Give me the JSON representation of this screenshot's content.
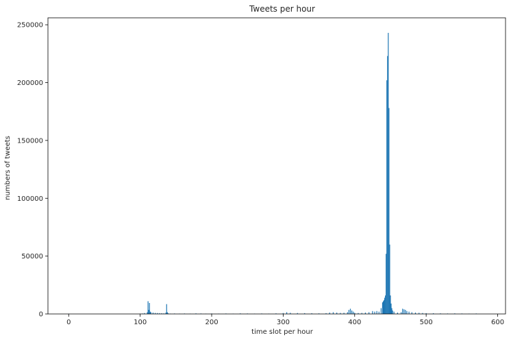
{
  "chart_data": {
    "type": "bar",
    "title": "Tweets per hour",
    "xlabel": "time slot per hour",
    "ylabel": "numbers of tweets",
    "xlim": [
      -29,
      611
    ],
    "ylim": [
      0,
      256000
    ],
    "xticks": [
      0,
      100,
      200,
      300,
      400,
      500,
      600
    ],
    "yticks": [
      0,
      50000,
      100000,
      150000,
      200000,
      250000
    ],
    "grid": false,
    "bar_color": "#1f77b4",
    "series": [
      {
        "x": [
          0,
          100,
          103,
          106,
          110,
          111,
          112,
          113,
          114,
          115,
          118,
          121,
          124,
          127,
          130,
          133,
          136,
          137,
          138,
          139,
          142,
          148,
          155,
          162,
          170,
          178,
          185,
          192,
          200,
          210,
          220,
          230,
          240,
          250,
          260,
          270,
          280,
          290,
          300,
          305,
          310,
          320,
          330,
          340,
          350,
          360,
          365,
          370,
          375,
          380,
          385,
          390,
          392,
          394,
          396,
          398,
          400,
          405,
          410,
          415,
          420,
          425,
          428,
          431,
          434,
          437,
          439,
          440,
          441,
          442,
          443,
          444,
          445,
          446,
          447,
          448,
          449,
          450,
          451,
          452,
          453,
          455,
          460,
          465,
          467,
          469,
          471,
          473,
          476,
          480,
          485,
          490,
          495,
          500,
          510,
          520,
          530,
          540,
          550,
          560,
          570
        ],
        "values": [
          200,
          300,
          400,
          800,
          1500,
          11000,
          3500,
          9500,
          2000,
          1500,
          1200,
          900,
          800,
          700,
          600,
          500,
          1200,
          8500,
          1500,
          600,
          300,
          400,
          300,
          400,
          300,
          500,
          400,
          300,
          400,
          300,
          400,
          300,
          500,
          400,
          300,
          400,
          300,
          500,
          800,
          1500,
          1000,
          800,
          700,
          600,
          500,
          700,
          1200,
          1500,
          1200,
          900,
          1000,
          1500,
          3500,
          4500,
          3000,
          2000,
          1000,
          800,
          900,
          1200,
          1500,
          2500,
          2000,
          2500,
          2000,
          5000,
          10000,
          11000,
          12000,
          14000,
          16000,
          52000,
          202000,
          223000,
          243000,
          178000,
          60000,
          16000,
          9000,
          5000,
          3000,
          2000,
          1200,
          1500,
          4500,
          4000,
          3500,
          2500,
          2000,
          1500,
          1200,
          1000,
          800,
          700,
          600,
          500,
          400,
          500,
          400,
          300,
          400
        ]
      }
    ]
  }
}
